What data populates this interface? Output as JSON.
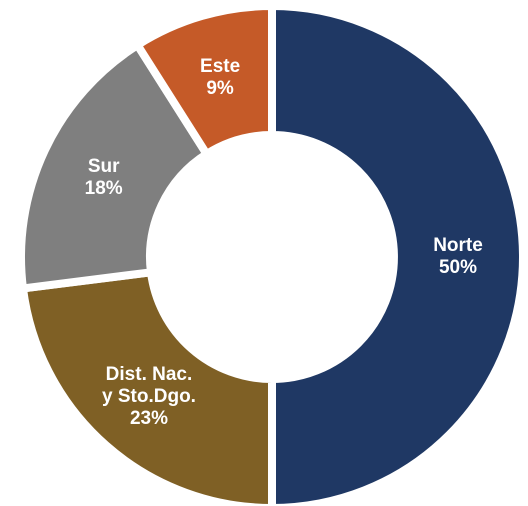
{
  "chart_data": {
    "type": "donut",
    "categories": [
      "Norte",
      "Dist. Nac.\ny Sto.Dgo.",
      "Sur",
      "Este"
    ],
    "values": [
      50,
      23,
      18,
      9
    ],
    "value_labels": [
      "50%",
      "23%",
      "18%",
      "9%"
    ],
    "colors": [
      "#1f3864",
      "#7f6025",
      "#7f7f7f",
      "#c55a28"
    ]
  }
}
